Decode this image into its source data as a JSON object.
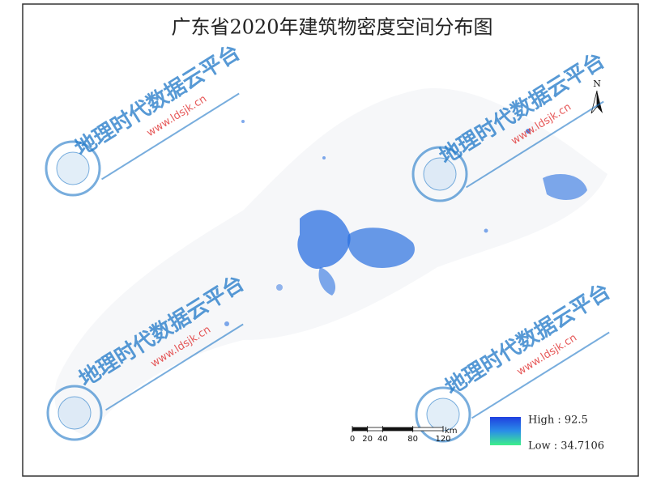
{
  "title": "广东省2020年建筑物密度空间分布图",
  "north": "N",
  "watermark": {
    "name": "地理时代数据云平台",
    "url": "www.ldsjk.cn"
  },
  "scale_bar": {
    "ticks": [
      0,
      20,
      40,
      80,
      120
    ],
    "unit": "km"
  },
  "legend": {
    "high": "High : 92.5",
    "low": "Low : 34.7106"
  }
}
